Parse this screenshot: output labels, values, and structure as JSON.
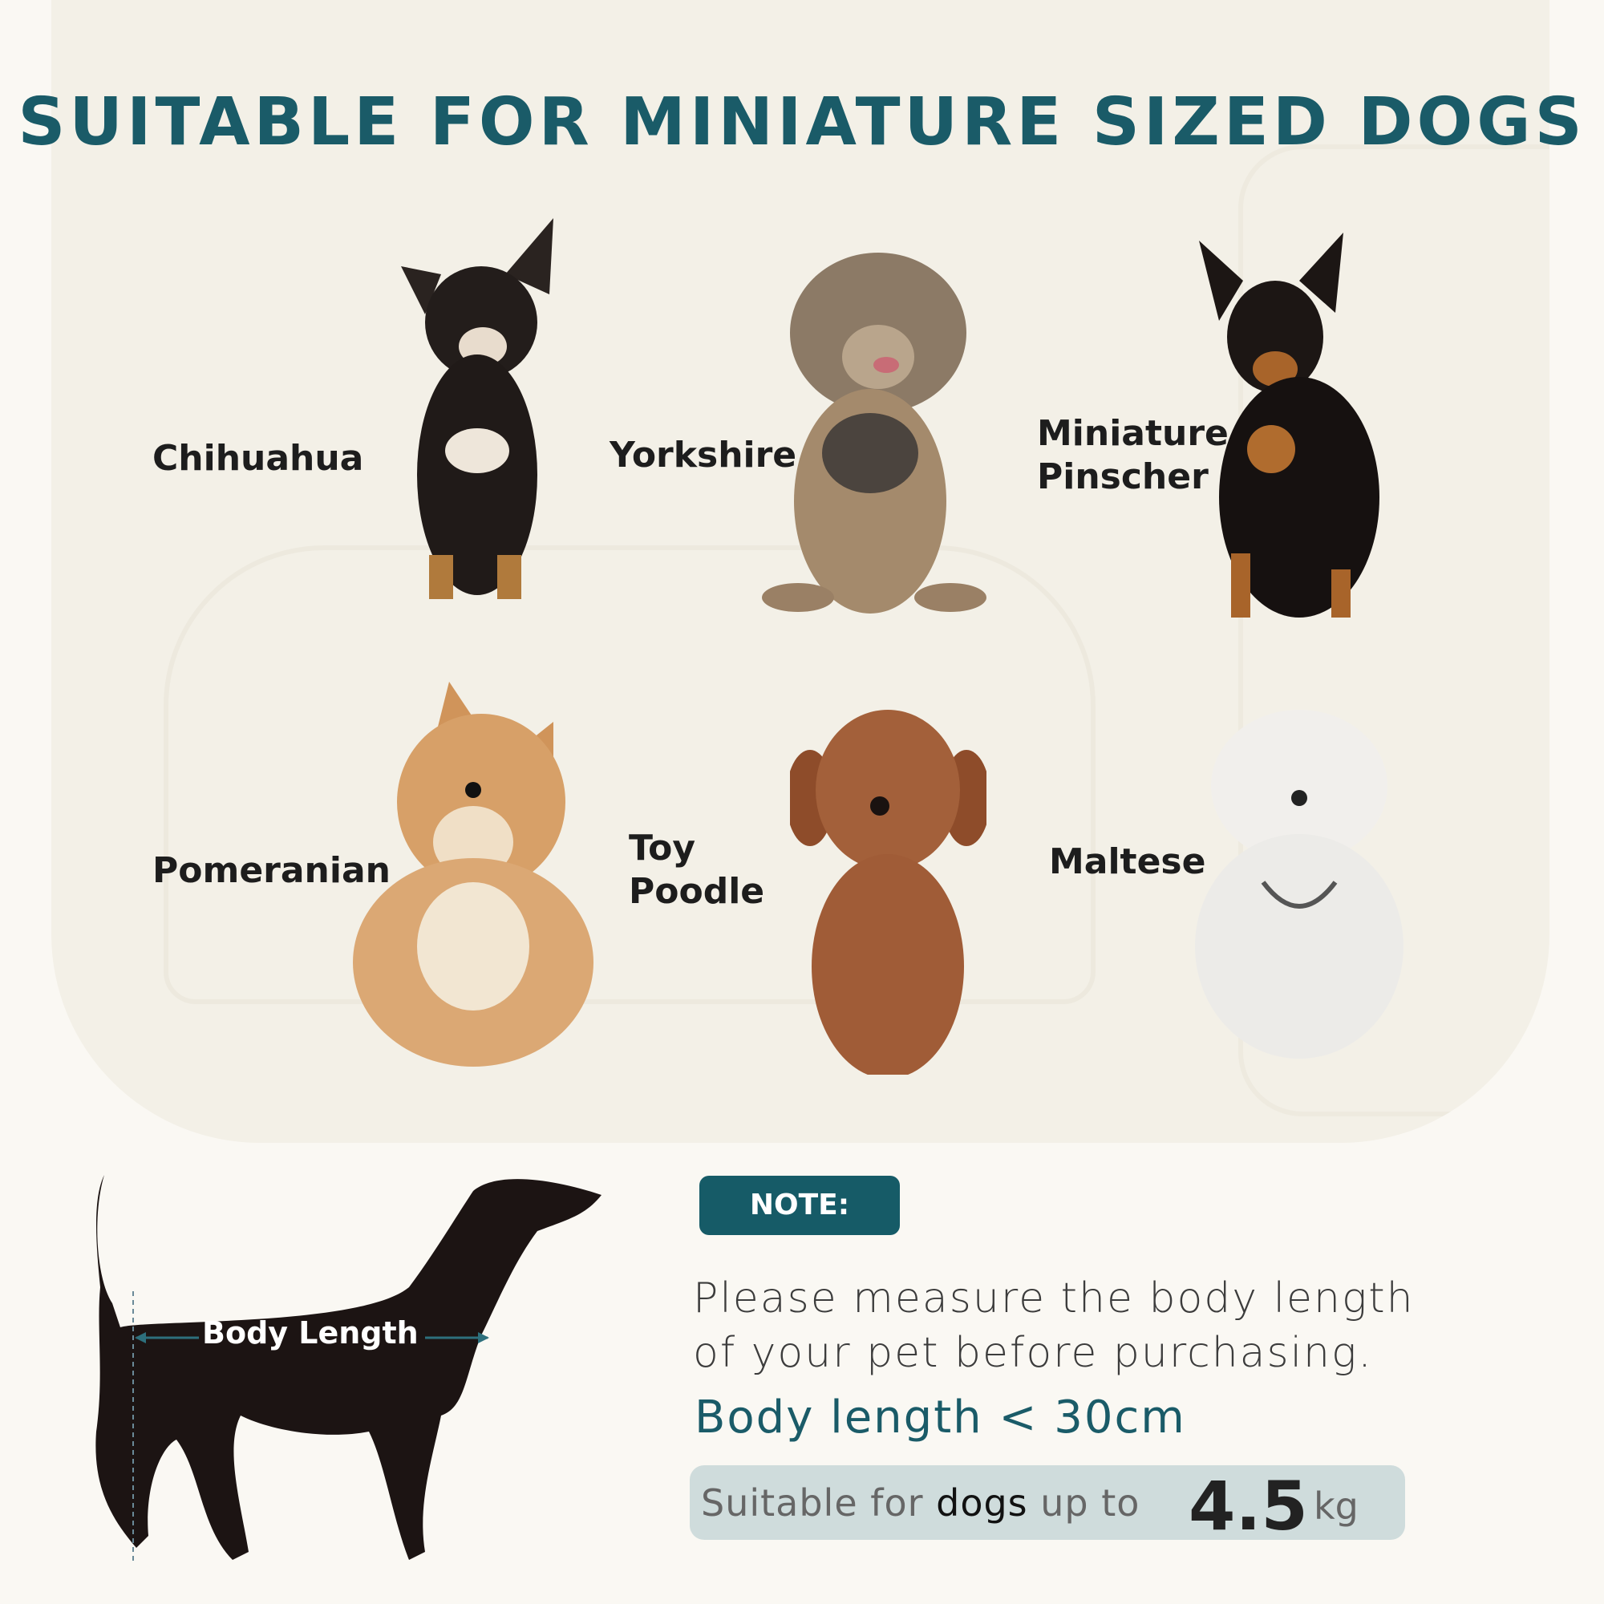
{
  "title": "SUITABLE FOR MINIATURE SIZED DOGS",
  "breeds": [
    {
      "name": "Chihuahua",
      "lines": [
        "Chihuahua"
      ]
    },
    {
      "name": "Yorkshire",
      "lines": [
        "Yorkshire"
      ]
    },
    {
      "name": "Miniature Pinscher",
      "lines": [
        "Miniature",
        "Pinscher"
      ]
    },
    {
      "name": "Pomeranian",
      "lines": [
        "Pomeranian"
      ]
    },
    {
      "name": "Toy Poodle",
      "lines": [
        "Toy",
        "Poodle"
      ]
    },
    {
      "name": "Maltese",
      "lines": [
        "Maltese"
      ]
    }
  ],
  "diagram": {
    "label": "Body Length"
  },
  "note": {
    "badge": "NOTE:",
    "message_line1": "Please measure the body length",
    "message_line2": "of your pet before purchasing.",
    "body_length": "Body length < 30cm",
    "weight_prefix": "Suitable for ",
    "weight_bold": "dogs",
    "weight_suffix": " up to",
    "weight_value": "4.5",
    "weight_unit": "kg"
  },
  "colors": {
    "accent": "#1a5b68",
    "background": "#faf8f3",
    "pill": "#cfdcdc"
  }
}
